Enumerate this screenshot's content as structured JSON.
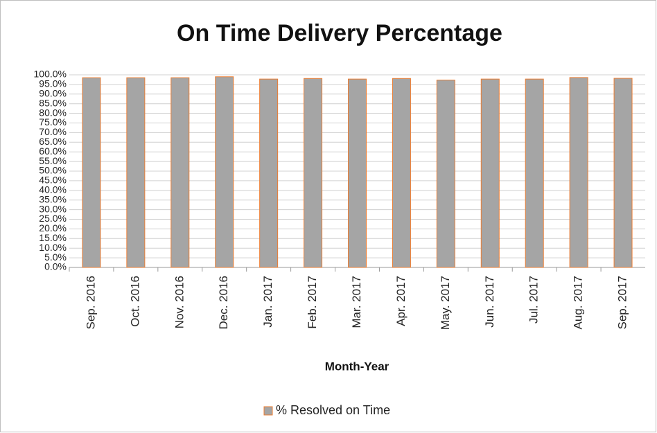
{
  "chart_data": {
    "type": "bar",
    "title": "On Time Delivery Percentage",
    "x_label": "Month-Year",
    "categories": [
      "Sep. 2016",
      "Oct. 2016",
      "Nov. 2016",
      "Dec. 2016",
      "Jan. 2017",
      "Feb. 2017",
      "Mar. 2017",
      "Apr. 2017",
      "May. 2017",
      "Jun. 2017",
      "Jul. 2017",
      "Aug. 2017",
      "Sep. 2017"
    ],
    "series": [
      {
        "name": "% Resolved on Time",
        "color": "#a5a5a5",
        "edge_color": "#ed7d31",
        "values": [
          98.5,
          98.5,
          98.5,
          99,
          97.8,
          98.1,
          97.8,
          98.1,
          97.3,
          97.8,
          97.8,
          98.6,
          98.2
        ]
      }
    ],
    "ylim": [
      0,
      100
    ],
    "yticks": [
      {
        "value": 0,
        "label": "0.0%"
      },
      {
        "value": 5,
        "label": "5.0%"
      },
      {
        "value": 10,
        "label": "10.0%"
      },
      {
        "value": 15,
        "label": "15.0%"
      },
      {
        "value": 20,
        "label": "20.0%"
      },
      {
        "value": 25,
        "label": "25.0%"
      },
      {
        "value": 30,
        "label": "30.0%"
      },
      {
        "value": 35,
        "label": "35.0%"
      },
      {
        "value": 40,
        "label": "40.0%"
      },
      {
        "value": 45,
        "label": "45.0%"
      },
      {
        "value": 50,
        "label": "50.0%"
      },
      {
        "value": 55,
        "label": "55.0%"
      },
      {
        "value": 60,
        "label": "60.0%"
      },
      {
        "value": 65,
        "label": "65.0%"
      },
      {
        "value": 70,
        "label": "70.0%"
      },
      {
        "value": 75,
        "label": "75.0%"
      },
      {
        "value": 80,
        "label": "80.0%"
      },
      {
        "value": 85,
        "label": "85.0%"
      },
      {
        "value": 90,
        "label": "90.0%"
      },
      {
        "value": 95,
        "label": "95.0%"
      },
      {
        "value": 100,
        "label": "100.0%"
      }
    ],
    "grid": true,
    "legend": "bottom"
  }
}
